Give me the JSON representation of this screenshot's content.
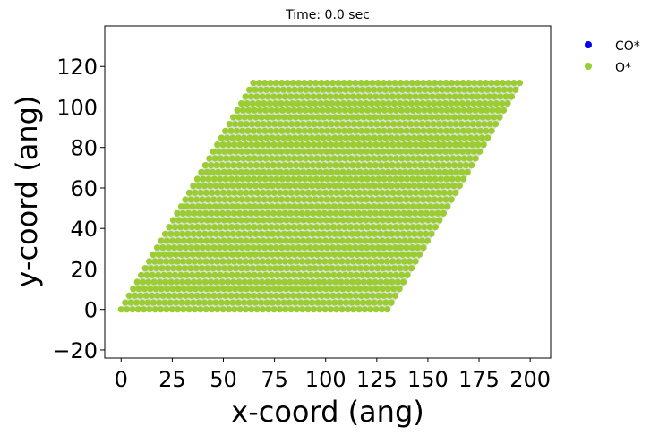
{
  "chart_data": {
    "type": "scatter",
    "title": "Time: 0.0 sec",
    "xlabel": "x-coord (ang)",
    "ylabel": "y-coord (ang)",
    "xlim": [
      -8,
      210
    ],
    "ylim": [
      -24,
      140
    ],
    "xticks": [
      0,
      25,
      50,
      75,
      100,
      125,
      150,
      175,
      200
    ],
    "yticks": [
      -20,
      0,
      20,
      40,
      60,
      80,
      100,
      120
    ],
    "lattice": {
      "rows": 34,
      "cols": 48,
      "origin": [
        0,
        0
      ],
      "a_vector": [
        2.77,
        0
      ],
      "b_vector": [
        1.96,
        3.39
      ],
      "base_row_x_span": [
        0,
        130
      ],
      "species": "O*"
    },
    "series": [
      {
        "name": "CO*",
        "color": "#0000ee",
        "count": 0
      },
      {
        "name": "O*",
        "color": "#9acd32",
        "count": 1632
      }
    ],
    "legend": {
      "entries": [
        "CO*",
        "O*"
      ],
      "location": "outside-right"
    },
    "background_color": "#e0e0e0"
  }
}
